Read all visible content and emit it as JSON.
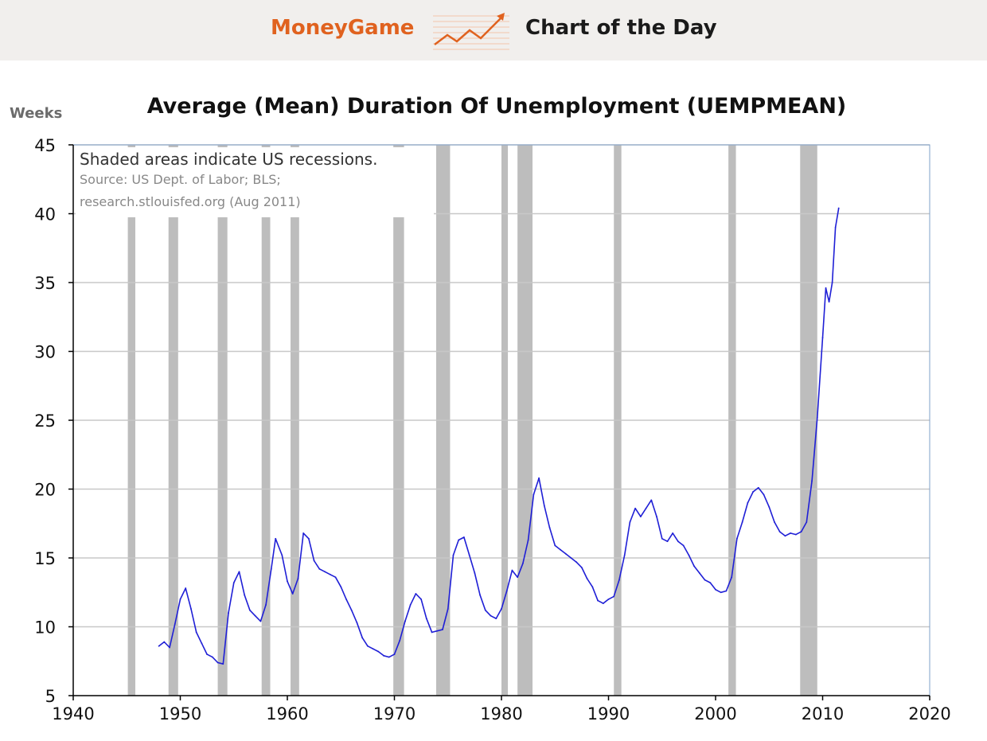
{
  "banner": {
    "brand": "MoneyGame",
    "title": "Chart of the Day",
    "brand_color": "#e0621f"
  },
  "chart_data": {
    "type": "line",
    "title": "Average (Mean) Duration Of Unemployment (UEMPMEAN)",
    "ylabel": "Weeks",
    "xlim": [
      1940,
      2020
    ],
    "ylim": [
      5,
      45
    ],
    "xticks": [
      1940,
      1950,
      1960,
      1970,
      1980,
      1990,
      2000,
      2010,
      2020
    ],
    "yticks": [
      5,
      10,
      15,
      20,
      25,
      30,
      35,
      40,
      45
    ],
    "grid": true,
    "note": {
      "main": "Shaded areas indicate US recessions.",
      "source_line1": "Source: US Dept. of Labor; BLS;",
      "source_line2": "research.stlouisfed.org (Aug 2011)"
    },
    "recessions": [
      [
        1945.1,
        1945.8
      ],
      [
        1948.9,
        1949.8
      ],
      [
        1953.5,
        1954.4
      ],
      [
        1957.6,
        1958.4
      ],
      [
        1960.3,
        1961.1
      ],
      [
        1969.9,
        1970.9
      ],
      [
        1973.9,
        1975.2
      ],
      [
        1980.0,
        1980.6
      ],
      [
        1981.5,
        1982.9
      ],
      [
        1990.5,
        1991.2
      ],
      [
        2001.2,
        2001.9
      ],
      [
        2007.9,
        2009.5
      ]
    ],
    "series": [
      {
        "line_color": "#1f1fd6",
        "points": [
          [
            1948.0,
            8.6
          ],
          [
            1948.5,
            8.9
          ],
          [
            1949.0,
            8.5
          ],
          [
            1949.5,
            10.2
          ],
          [
            1950.0,
            12.0
          ],
          [
            1950.5,
            12.8
          ],
          [
            1951.0,
            11.3
          ],
          [
            1951.5,
            9.6
          ],
          [
            1952.0,
            8.8
          ],
          [
            1952.5,
            8.0
          ],
          [
            1953.0,
            7.8
          ],
          [
            1953.5,
            7.4
          ],
          [
            1954.0,
            7.3
          ],
          [
            1954.5,
            11.0
          ],
          [
            1955.0,
            13.2
          ],
          [
            1955.5,
            14.0
          ],
          [
            1956.0,
            12.3
          ],
          [
            1956.5,
            11.2
          ],
          [
            1957.0,
            10.8
          ],
          [
            1957.5,
            10.4
          ],
          [
            1958.0,
            11.6
          ],
          [
            1958.5,
            14.2
          ],
          [
            1958.9,
            16.4
          ],
          [
            1959.5,
            15.2
          ],
          [
            1960.0,
            13.3
          ],
          [
            1960.5,
            12.4
          ],
          [
            1961.0,
            13.5
          ],
          [
            1961.5,
            16.8
          ],
          [
            1962.0,
            16.4
          ],
          [
            1962.5,
            14.8
          ],
          [
            1963.0,
            14.2
          ],
          [
            1963.5,
            14.0
          ],
          [
            1964.0,
            13.8
          ],
          [
            1964.5,
            13.6
          ],
          [
            1965.0,
            12.9
          ],
          [
            1965.5,
            12.0
          ],
          [
            1966.0,
            11.2
          ],
          [
            1966.5,
            10.3
          ],
          [
            1967.0,
            9.2
          ],
          [
            1967.5,
            8.6
          ],
          [
            1968.0,
            8.4
          ],
          [
            1968.5,
            8.2
          ],
          [
            1969.0,
            7.9
          ],
          [
            1969.5,
            7.8
          ],
          [
            1970.0,
            8.0
          ],
          [
            1970.5,
            9.0
          ],
          [
            1971.0,
            10.4
          ],
          [
            1971.5,
            11.6
          ],
          [
            1972.0,
            12.4
          ],
          [
            1972.5,
            12.0
          ],
          [
            1973.0,
            10.6
          ],
          [
            1973.5,
            9.6
          ],
          [
            1974.0,
            9.7
          ],
          [
            1974.5,
            9.8
          ],
          [
            1975.0,
            11.3
          ],
          [
            1975.5,
            15.2
          ],
          [
            1976.0,
            16.3
          ],
          [
            1976.5,
            16.5
          ],
          [
            1977.0,
            15.2
          ],
          [
            1977.5,
            13.9
          ],
          [
            1978.0,
            12.3
          ],
          [
            1978.5,
            11.2
          ],
          [
            1979.0,
            10.8
          ],
          [
            1979.5,
            10.6
          ],
          [
            1980.0,
            11.3
          ],
          [
            1980.5,
            12.6
          ],
          [
            1981.0,
            14.1
          ],
          [
            1981.5,
            13.6
          ],
          [
            1982.0,
            14.6
          ],
          [
            1982.5,
            16.3
          ],
          [
            1983.0,
            19.6
          ],
          [
            1983.5,
            20.8
          ],
          [
            1984.0,
            18.8
          ],
          [
            1984.5,
            17.2
          ],
          [
            1985.0,
            15.9
          ],
          [
            1985.5,
            15.6
          ],
          [
            1986.0,
            15.3
          ],
          [
            1986.5,
            15.0
          ],
          [
            1987.0,
            14.7
          ],
          [
            1987.5,
            14.3
          ],
          [
            1988.0,
            13.5
          ],
          [
            1988.5,
            12.9
          ],
          [
            1989.0,
            11.9
          ],
          [
            1989.5,
            11.7
          ],
          [
            1990.0,
            12.0
          ],
          [
            1990.5,
            12.2
          ],
          [
            1991.0,
            13.4
          ],
          [
            1991.5,
            15.2
          ],
          [
            1992.0,
            17.6
          ],
          [
            1992.5,
            18.6
          ],
          [
            1993.0,
            18.0
          ],
          [
            1993.5,
            18.6
          ],
          [
            1994.0,
            19.2
          ],
          [
            1994.5,
            18.0
          ],
          [
            1995.0,
            16.4
          ],
          [
            1995.5,
            16.2
          ],
          [
            1996.0,
            16.8
          ],
          [
            1996.5,
            16.2
          ],
          [
            1997.0,
            15.9
          ],
          [
            1997.5,
            15.2
          ],
          [
            1998.0,
            14.4
          ],
          [
            1998.5,
            13.9
          ],
          [
            1999.0,
            13.4
          ],
          [
            1999.5,
            13.2
          ],
          [
            2000.0,
            12.7
          ],
          [
            2000.5,
            12.5
          ],
          [
            2001.0,
            12.6
          ],
          [
            2001.5,
            13.6
          ],
          [
            2002.0,
            16.4
          ],
          [
            2002.5,
            17.6
          ],
          [
            2003.0,
            19.0
          ],
          [
            2003.5,
            19.8
          ],
          [
            2004.0,
            20.1
          ],
          [
            2004.5,
            19.6
          ],
          [
            2005.0,
            18.7
          ],
          [
            2005.5,
            17.6
          ],
          [
            2006.0,
            16.9
          ],
          [
            2006.5,
            16.6
          ],
          [
            2007.0,
            16.8
          ],
          [
            2007.5,
            16.7
          ],
          [
            2008.0,
            16.9
          ],
          [
            2008.5,
            17.6
          ],
          [
            2009.0,
            20.6
          ],
          [
            2009.5,
            25.2
          ],
          [
            2010.0,
            31.0
          ],
          [
            2010.3,
            34.6
          ],
          [
            2010.6,
            33.6
          ],
          [
            2010.9,
            35.0
          ],
          [
            2011.2,
            39.0
          ],
          [
            2011.5,
            40.4
          ]
        ]
      }
    ]
  }
}
